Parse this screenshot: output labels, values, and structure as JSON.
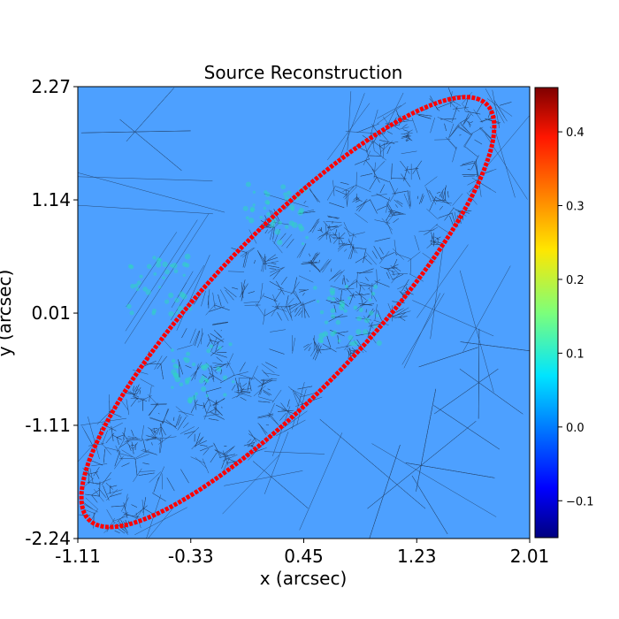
{
  "chart_data": {
    "type": "heatmap",
    "title": "Source Reconstruction",
    "xlabel": "x (arcsec)",
    "ylabel": "y (arcsec)",
    "xlim": [
      -1.11,
      2.01
    ],
    "ylim": [
      -2.24,
      2.27
    ],
    "xticks": [
      "-1.11",
      "-0.33",
      "0.45",
      "1.23",
      "2.01"
    ],
    "yticks": [
      "2.27",
      "1.14",
      "0.01",
      "-1.11",
      "-2.24"
    ],
    "background_value": 0.0,
    "colormap": "jet",
    "colorbar": {
      "min": -0.15,
      "max": 0.46,
      "ticks": [
        "−0.1",
        "0.0",
        "0.1",
        "0.2",
        "0.3",
        "0.4"
      ],
      "tick_values": [
        -0.1,
        0.0,
        0.1,
        0.2,
        0.3,
        0.4
      ]
    },
    "caustic_curve": {
      "color": "#ff0000",
      "center": [
        0.34,
        0.02
      ],
      "semi_major": 2.5,
      "semi_minor": 0.62,
      "angle_deg": 58
    },
    "bright_regions": [
      {
        "x": 0.25,
        "y": 1.0,
        "value": 0.12
      },
      {
        "x": -0.25,
        "y": -0.6,
        "value": 0.09
      },
      {
        "x": -0.55,
        "y": 0.3,
        "value": 0.07
      },
      {
        "x": 0.75,
        "y": 0.0,
        "value": 0.08
      }
    ]
  }
}
